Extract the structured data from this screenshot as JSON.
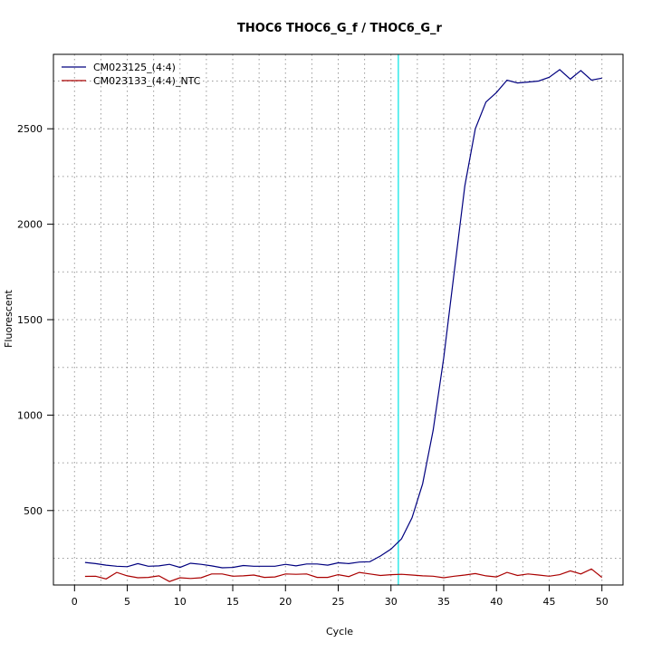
{
  "chart_data": {
    "type": "line",
    "title": "THOC6  THOC6_G_f / THOC6_G_r",
    "xlabel": "Cycle",
    "ylabel": "Fluorescent",
    "xlim": [
      -2,
      52
    ],
    "ylim": [
      110,
      2890
    ],
    "xticks": [
      0,
      5,
      10,
      15,
      20,
      25,
      30,
      35,
      40,
      45,
      50
    ],
    "yticks": [
      500,
      1000,
      1500,
      2000,
      2500
    ],
    "grid": true,
    "legend_position": "top-left",
    "threshold_cycle": 30.7,
    "threshold_color": "#00e5e5",
    "series": [
      {
        "name": "CM023125_(4:4)",
        "color": "#00007f",
        "x": [
          1,
          2,
          3,
          4,
          5,
          6,
          7,
          8,
          9,
          10,
          11,
          12,
          13,
          14,
          15,
          16,
          17,
          18,
          19,
          20,
          21,
          22,
          23,
          24,
          25,
          26,
          27,
          28,
          29,
          30,
          31,
          32,
          33,
          34,
          35,
          36,
          37,
          38,
          39,
          40,
          41,
          42,
          43,
          44,
          45,
          46,
          47,
          48,
          49,
          50
        ],
        "values": [
          228,
          222,
          214,
          208,
          206,
          222,
          208,
          210,
          218,
          202,
          224,
          218,
          210,
          200,
          202,
          212,
          208,
          208,
          208,
          218,
          210,
          220,
          220,
          214,
          226,
          222,
          230,
          232,
          262,
          298,
          352,
          462,
          640,
          920,
          1300,
          1750,
          2200,
          2500,
          2640,
          2690,
          2755,
          2740,
          2745,
          2750,
          2770,
          2810,
          2760,
          2805,
          2755,
          2765
        ]
      },
      {
        "name": "CM023133_(4:4)_NTC",
        "color": "#aa0000",
        "x": [
          1,
          2,
          3,
          4,
          5,
          6,
          7,
          8,
          9,
          10,
          11,
          12,
          13,
          14,
          15,
          16,
          17,
          18,
          19,
          20,
          21,
          22,
          23,
          24,
          25,
          26,
          27,
          28,
          29,
          30,
          31,
          32,
          33,
          34,
          35,
          36,
          37,
          38,
          39,
          40,
          41,
          42,
          43,
          44,
          45,
          46,
          47,
          48,
          49,
          50
        ],
        "values": [
          155,
          156,
          142,
          176,
          158,
          148,
          150,
          158,
          128,
          148,
          144,
          148,
          168,
          168,
          156,
          158,
          162,
          150,
          152,
          168,
          166,
          168,
          150,
          150,
          164,
          154,
          176,
          168,
          160,
          164,
          166,
          162,
          158,
          156,
          148,
          156,
          162,
          170,
          158,
          152,
          176,
          160,
          168,
          162,
          156,
          164,
          184,
          168,
          194,
          150
        ]
      }
    ]
  }
}
